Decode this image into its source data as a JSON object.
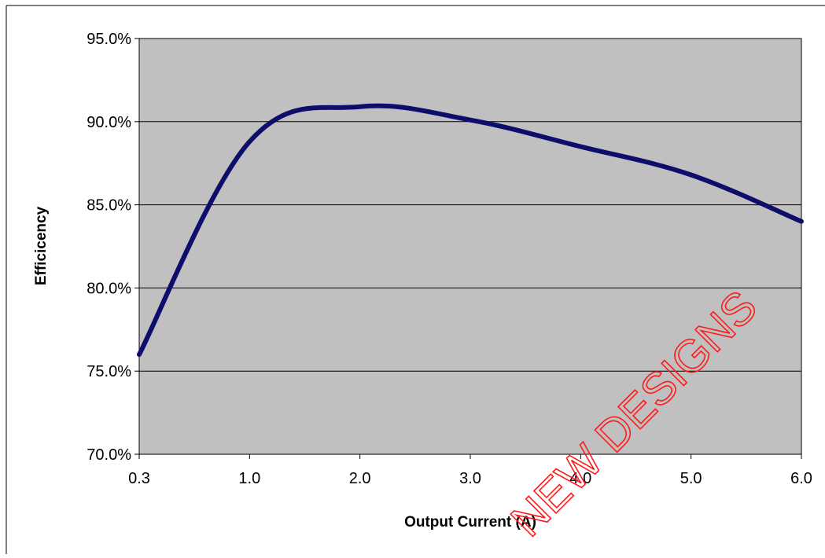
{
  "chart_data": {
    "type": "line",
    "title": "",
    "xlabel": "Output Current (A)",
    "ylabel": "Efficicency",
    "x_ticks": [
      "0.3",
      "1.0",
      "2.0",
      "3.0",
      "4.0",
      "5.0",
      "6.0"
    ],
    "y_ticks": [
      "70.0%",
      "75.0%",
      "80.0%",
      "85.0%",
      "90.0%",
      "95.0%"
    ],
    "ylim": [
      70,
      95
    ],
    "grid": true,
    "series": [
      {
        "color": "#0d0d6b",
        "points": [
          {
            "x": "0.3",
            "y": 76.0
          },
          {
            "x": "1.0",
            "y": 88.8
          },
          {
            "x": "2.0",
            "y": 90.9
          },
          {
            "x": "3.0",
            "y": 90.1
          },
          {
            "x": "4.0",
            "y": 88.5
          },
          {
            "x": "5.0",
            "y": 86.8
          },
          {
            "x": "6.0",
            "y": 84.0
          }
        ]
      }
    ]
  },
  "watermark": "NEW DESIGNS",
  "colors": {
    "plot_background": "#c0c0c0",
    "line": "#0d0d6b",
    "gridline": "#000000",
    "watermark": "#ff1a1a"
  }
}
